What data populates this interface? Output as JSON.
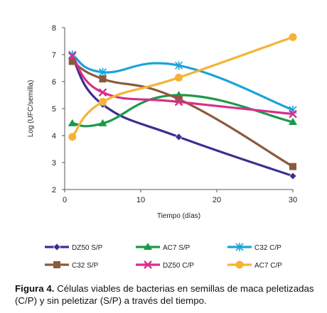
{
  "chart_data": {
    "type": "line",
    "x": [
      1,
      5,
      15,
      30
    ],
    "xlabel": "Tiempo (días)",
    "ylabel": "Log (UFC/semilla)",
    "xlim": [
      0,
      30
    ],
    "ylim": [
      2,
      8
    ],
    "xticks": [
      0,
      10,
      20,
      30
    ],
    "yticks": [
      2,
      3,
      4,
      5,
      6,
      7,
      8
    ],
    "grid": false,
    "legend_position": "bottom",
    "series": [
      {
        "name": "DZ50 S/P",
        "color": "#3b2f8f",
        "marker": "diamond",
        "values": [
          6.9,
          5.15,
          3.95,
          2.5
        ]
      },
      {
        "name": "AC7 S/P",
        "color": "#1a9a4a",
        "marker": "triangle",
        "values": [
          4.45,
          4.45,
          5.5,
          4.5
        ]
      },
      {
        "name": "C32 C/P",
        "color": "#1aa3dc",
        "marker": "asterisk",
        "values": [
          7.0,
          6.35,
          6.6,
          4.95
        ]
      },
      {
        "name": "C32 S/P",
        "color": "#8b5a3c",
        "marker": "square",
        "values": [
          6.75,
          6.1,
          5.35,
          2.85
        ]
      },
      {
        "name": "DZ50 C/P",
        "color": "#d92e8a",
        "marker": "x",
        "values": [
          6.95,
          5.6,
          5.25,
          4.8
        ]
      },
      {
        "name": "AC7 C/P",
        "color": "#f5b335",
        "marker": "circle",
        "values": [
          3.95,
          5.25,
          6.15,
          7.65
        ]
      }
    ]
  },
  "caption": {
    "prefix": "Figura 4.",
    "text": " Células viables de bacterias en semillas de maca peletizadas (C/P) y sin peletizar (S/P) a través del tiempo."
  }
}
